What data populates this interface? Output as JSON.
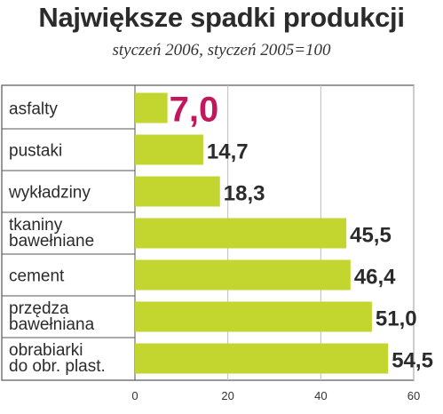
{
  "chart_data": {
    "type": "bar",
    "orientation": "horizontal",
    "title": "Największe spadki produkcji",
    "subtitle": "styczeń 2006, styczeń 2005=100",
    "categories": [
      [
        "asfalty"
      ],
      [
        "pustaki"
      ],
      [
        "wykładziny"
      ],
      [
        "tkaniny",
        "bawełniane"
      ],
      [
        "cement"
      ],
      [
        "przędza",
        "bawełniana"
      ],
      [
        "obrabiarki",
        "do obr. plast."
      ]
    ],
    "values": [
      7.0,
      14.7,
      18.3,
      45.5,
      46.4,
      51.0,
      54.5
    ],
    "value_labels": [
      "7,0",
      "14,7",
      "18,3",
      "45,5",
      "46,4",
      "51,0",
      "54,5"
    ],
    "highlight_index": 0,
    "xlim": [
      0,
      60
    ],
    "xticks": [
      0,
      20,
      40,
      60
    ],
    "xtick_labels": [
      "0",
      "20",
      "40",
      "60"
    ],
    "grid": true,
    "colors": {
      "bar": "#c3d630",
      "highlight_label": "#c2185b",
      "text": "#2b2b2b",
      "grid": "#bdbdbd",
      "frame": "#555555"
    }
  }
}
